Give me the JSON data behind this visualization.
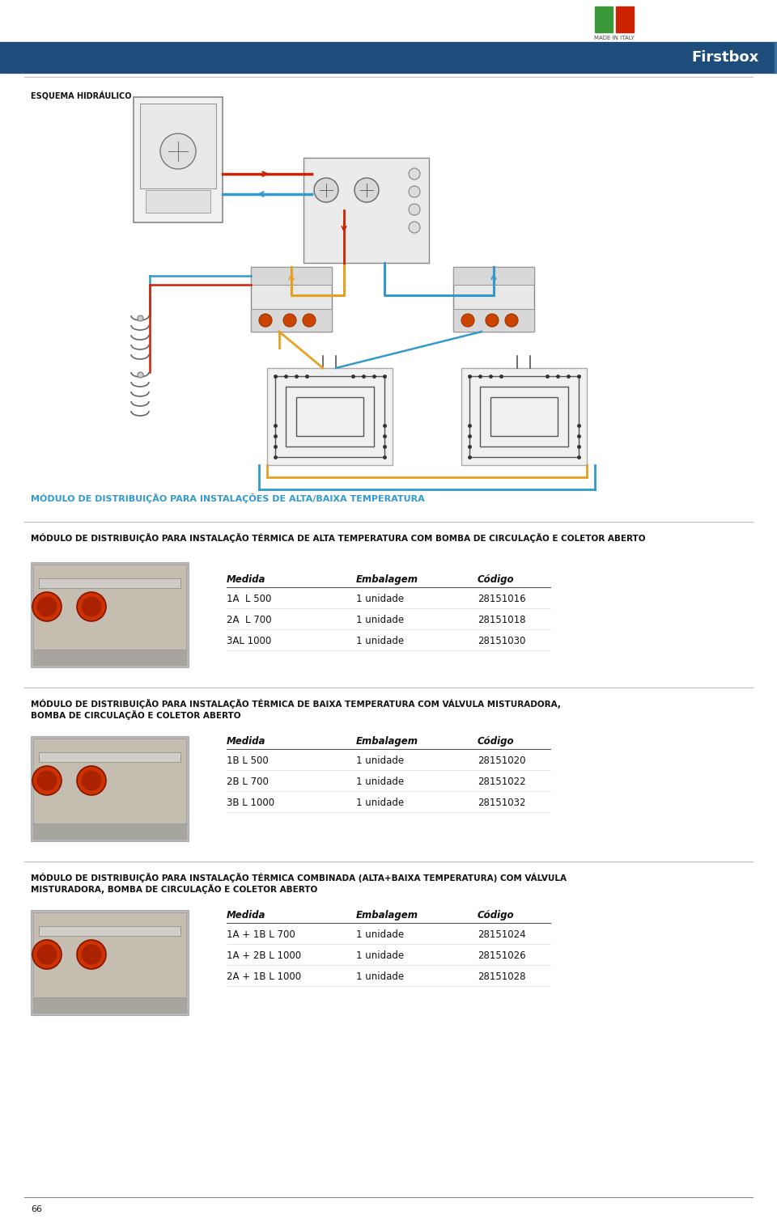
{
  "page_bg": "#ffffff",
  "header_bg": "#1e4d7b",
  "header_text": "Firstbox",
  "header_text_color": "#ffffff",
  "italy_flag_green": "#3a9a3a",
  "italy_flag_red": "#cc2200",
  "made_in_italy_text": "MADE IN ITALY",
  "esquema_label": "ESQUEMA HIDRÁULICO",
  "section1_title": "MÓDULO DE DISTRIBUIÇÃO PARA INSTALAÇÃO TÉRMICA DE ALTA TEMPERATURA COM BOMBA DE CIRCULAÇÃO E COLETOR ABERTO",
  "section2_title_line1": "MÓDULO DE DISTRIBUIÇÃO PARA INSTALAÇÃO TÉRMICA DE BAIXA TEMPERATURA COM VÁLVULA MISTURADORA,",
  "section2_title_line2": "BOMBA DE CIRCULAÇÃO E COLETOR ABERTO",
  "section3_title_line1": "MÓDULO DE DISTRIBUIÇÃO PARA INSTALAÇÃO TÉRMICA COMBINADA (ALTA+BAIXA TEMPERATURA) COM VÁLVULA",
  "section3_title_line2": "MISTURADORA, BOMBA DE CIRCULAÇÃO E COLETOR ABERTO",
  "diagram_title": "MÓDULO DE DISTRIBUIÇÃO PARA INSTALAÇÕES DE ALTA/BAIXA TEMPERATURA",
  "diagram_title_color": "#3399cc",
  "col_headers": [
    "Medida",
    "Embalagem",
    "Código"
  ],
  "section1_rows": [
    [
      "1A  L 500",
      "1 unidade",
      "28151016"
    ],
    [
      "2A  L 700",
      "1 unidade",
      "28151018"
    ],
    [
      "3AL 1000",
      "1 unidade",
      "28151030"
    ]
  ],
  "section2_rows": [
    [
      "1B L 500",
      "1 unidade",
      "28151020"
    ],
    [
      "2B L 700",
      "1 unidade",
      "28151022"
    ],
    [
      "3B L 1000",
      "1 unidade",
      "28151032"
    ]
  ],
  "section3_rows": [
    [
      "1A + 1B L 700",
      "1 unidade",
      "28151024"
    ],
    [
      "1A + 2B L 1000",
      "1 unidade",
      "28151026"
    ],
    [
      "2A + 1B L 1000",
      "1 unidade",
      "28151028"
    ]
  ],
  "text_dark": "#111111",
  "page_number": "66",
  "red_pipe": "#cc2200",
  "blue_pipe": "#3399cc",
  "orange_pipe": "#e8a020",
  "img_bg": "#c8c8c8",
  "img_top_bg": "#b8b8b8"
}
